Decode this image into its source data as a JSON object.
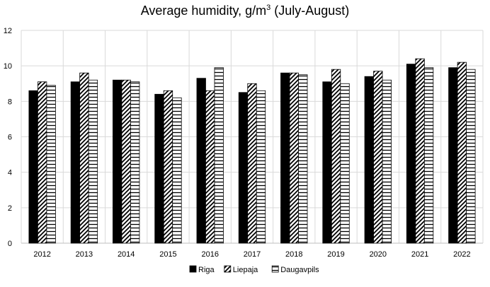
{
  "chart_data": {
    "type": "bar",
    "title": "Average humidity, g/m",
    "title_superscript": "3",
    "title_suffix": " (July-August)",
    "xlabel": "",
    "ylabel": "",
    "ylim": [
      0,
      12
    ],
    "yticks": [
      "0",
      "2",
      "4",
      "6",
      "8",
      "10",
      "12"
    ],
    "grid": true,
    "legend_position": "bottom",
    "categories": [
      "2012",
      "2013",
      "2014",
      "2015",
      "2016",
      "2017",
      "2018",
      "2019",
      "2020",
      "2021",
      "2022"
    ],
    "series": [
      {
        "name": "Riga",
        "pattern": "solid-black",
        "values": [
          8.6,
          9.1,
          9.2,
          8.4,
          9.3,
          8.5,
          9.6,
          9.1,
          9.4,
          10.1,
          9.9
        ]
      },
      {
        "name": "Liepaja",
        "pattern": "diagonal-stripes",
        "values": [
          9.1,
          9.6,
          9.2,
          8.6,
          8.6,
          9.0,
          9.6,
          9.8,
          9.7,
          10.4,
          10.2
        ]
      },
      {
        "name": "Daugavpils",
        "pattern": "horizontal-stripes",
        "values": [
          8.9,
          9.2,
          9.1,
          8.2,
          9.9,
          8.6,
          9.5,
          9.0,
          9.2,
          9.9,
          9.8
        ]
      }
    ]
  }
}
